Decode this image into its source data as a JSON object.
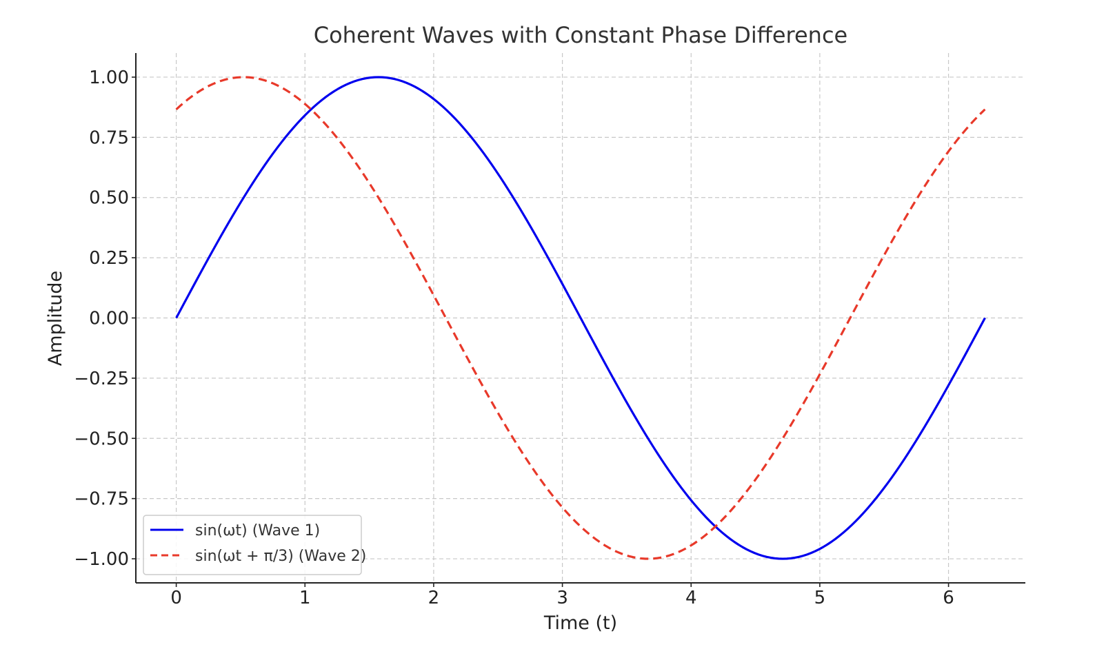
{
  "chart_data": {
    "type": "line",
    "title": "Coherent Waves with Constant Phase Difference",
    "xlabel": "Time (t)",
    "ylabel": "Amplitude",
    "xlim": [
      -0.314,
      6.597
    ],
    "ylim": [
      -1.1,
      1.1
    ],
    "xticks": [
      0,
      1,
      2,
      3,
      4,
      5,
      6
    ],
    "xtick_labels": [
      "0",
      "1",
      "2",
      "3",
      "4",
      "5",
      "6"
    ],
    "yticks": [
      1.0,
      0.75,
      0.5,
      0.25,
      0.0,
      -0.25,
      -0.5,
      -0.75,
      -1.0
    ],
    "ytick_labels": [
      "1.00",
      "0.75",
      "0.50",
      "0.25",
      "0.00",
      "−0.25",
      "−0.50",
      "−0.75",
      "−1.00"
    ],
    "grid": true,
    "legend_position": "lower-left",
    "series": [
      {
        "name": "sin(ωt) (Wave 1)",
        "color": "#0000ee",
        "style": "solid",
        "x": [
          0.0,
          0.2618,
          0.5236,
          0.7854,
          1.0472,
          1.309,
          1.5708,
          1.8326,
          2.0944,
          2.3562,
          2.618,
          2.8798,
          3.1416,
          3.4034,
          3.6652,
          3.927,
          4.1888,
          4.4506,
          4.7124,
          4.9742,
          5.236,
          5.4978,
          5.7596,
          6.0214,
          6.2832
        ],
        "y": [
          0.0,
          0.2588,
          0.5,
          0.7071,
          0.866,
          0.9659,
          1.0,
          0.9659,
          0.866,
          0.7071,
          0.5,
          0.2588,
          0.0,
          -0.2588,
          -0.5,
          -0.7071,
          -0.866,
          -0.9659,
          -1.0,
          -0.9659,
          -0.866,
          -0.7071,
          -0.5,
          -0.2588,
          0.0
        ]
      },
      {
        "name": "sin(ωt + π/3) (Wave 2)",
        "color": "#e8392a",
        "style": "dashed",
        "x": [
          0.0,
          0.2618,
          0.5236,
          0.7854,
          1.0472,
          1.309,
          1.5708,
          1.8326,
          2.0944,
          2.3562,
          2.618,
          2.8798,
          3.1416,
          3.4034,
          3.6652,
          3.927,
          4.1888,
          4.4506,
          4.7124,
          4.9742,
          5.236,
          5.4978,
          5.7596,
          6.0214,
          6.2832
        ],
        "y": [
          0.866,
          0.9659,
          1.0,
          0.9659,
          0.866,
          0.7071,
          0.5,
          0.2588,
          0.0,
          -0.2588,
          -0.5,
          -0.7071,
          -0.866,
          -0.9659,
          -1.0,
          -0.9659,
          -0.866,
          -0.7071,
          -0.5,
          -0.2588,
          0.0,
          0.2588,
          0.5,
          0.7071,
          0.866
        ]
      }
    ]
  }
}
